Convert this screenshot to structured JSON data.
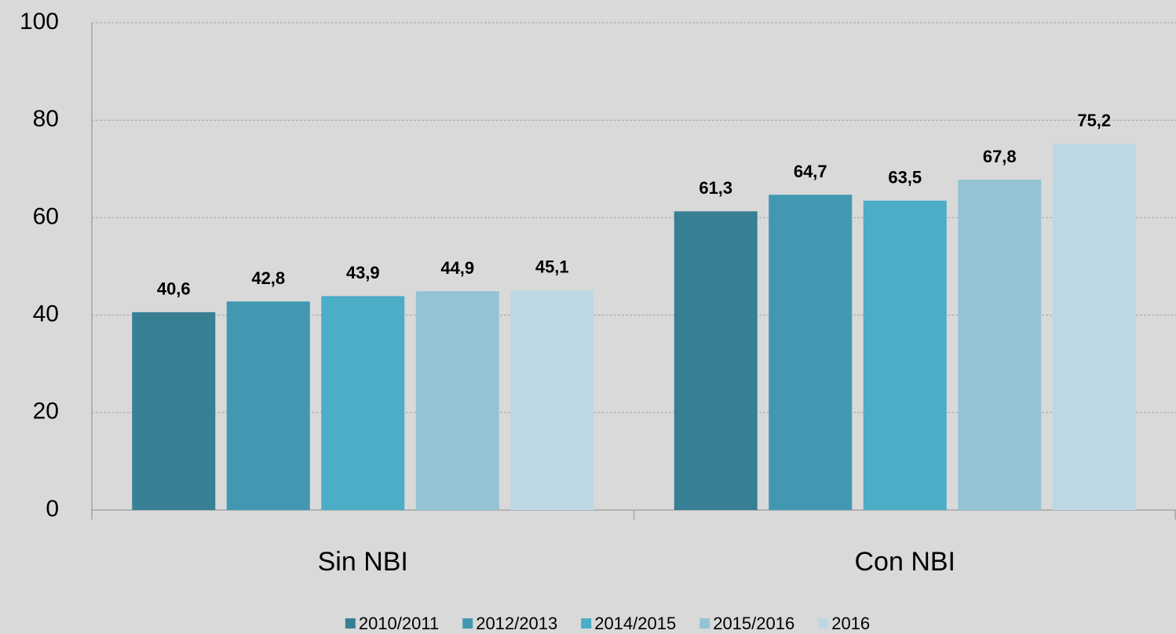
{
  "chart_data": {
    "type": "bar",
    "categories": [
      "Sin NBI",
      "Con NBI"
    ],
    "series": [
      {
        "name": "2010/2011",
        "color": "#377f94",
        "values": [
          40.6,
          61.3
        ],
        "value_labels": [
          "40,6",
          "61,3"
        ]
      },
      {
        "name": "2012/2013",
        "color": "#4198b0",
        "values": [
          42.8,
          64.7
        ],
        "value_labels": [
          "42,8",
          "64,7"
        ]
      },
      {
        "name": "2014/2015",
        "color": "#4badc6",
        "values": [
          43.9,
          63.5
        ],
        "value_labels": [
          "43,9",
          "63,5"
        ]
      },
      {
        "name": "2015/2016",
        "color": "#93c3d5",
        "values": [
          44.9,
          67.8
        ],
        "value_labels": [
          "44,9",
          "67,8"
        ]
      },
      {
        "name": "2016",
        "color": "#bed8e3",
        "values": [
          45.1,
          75.2
        ],
        "value_labels": [
          "45,1",
          "75,2"
        ]
      }
    ],
    "ylim": [
      0,
      100
    ],
    "yticks": [
      0,
      20,
      40,
      60,
      80,
      100
    ],
    "grid": true,
    "legend": "bottom"
  }
}
